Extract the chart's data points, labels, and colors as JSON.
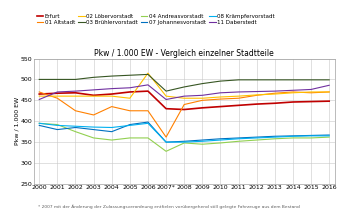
{
  "title": "Pkw / 1.000 EW - Vergleich einzelner Stadtteile",
  "ylabel": "Pkw / 1.000 EW",
  "footnote": "* 2007 mit der Änderung der Zulassungsverordnung entfielen vorübergehend still gelegte Fahrzeuge aus dem Bestand",
  "years": [
    "2000",
    "2001",
    "2002",
    "2003",
    "2004",
    "2005",
    "2006",
    "2007*",
    "2008",
    "2009",
    "2010",
    "2011",
    "2012",
    "2013",
    "2014",
    "2015",
    "2016"
  ],
  "ylim": [
    250,
    550
  ],
  "yticks": [
    250,
    300,
    350,
    400,
    450,
    500,
    550
  ],
  "series": [
    {
      "label": "Erfurt",
      "color": "#c00000",
      "linewidth": 1.2,
      "values": [
        465,
        467,
        468,
        462,
        465,
        470,
        472,
        430,
        428,
        432,
        435,
        438,
        441,
        443,
        446,
        447,
        448
      ]
    },
    {
      "label": "01 Altstadt",
      "color": "#ff8000",
      "linewidth": 0.8,
      "values": [
        470,
        455,
        425,
        415,
        435,
        425,
        425,
        362,
        440,
        450,
        453,
        455,
        462,
        467,
        470,
        468,
        470
      ]
    },
    {
      "label": "02 Löbervorstadt",
      "color": "#ffc000",
      "linewidth": 0.8,
      "values": [
        460,
        460,
        460,
        460,
        460,
        455,
        515,
        460,
        455,
        455,
        458,
        460,
        463,
        465,
        468,
        470,
        470
      ]
    },
    {
      "label": "03 Brühlervorstadt",
      "color": "#375623",
      "linewidth": 0.8,
      "values": [
        500,
        500,
        500,
        505,
        508,
        510,
        512,
        472,
        482,
        490,
        496,
        499,
        499,
        499,
        499,
        499,
        499
      ]
    },
    {
      "label": "04 Andreasvorstadt",
      "color": "#92d050",
      "linewidth": 0.8,
      "values": [
        395,
        392,
        375,
        360,
        355,
        360,
        360,
        328,
        348,
        345,
        348,
        352,
        355,
        358,
        360,
        360,
        362
      ]
    },
    {
      "label": "07 Johannesvorstadt",
      "color": "#0070c0",
      "linewidth": 0.8,
      "values": [
        390,
        380,
        385,
        380,
        375,
        392,
        398,
        350,
        352,
        355,
        358,
        360,
        362,
        364,
        365,
        366,
        367
      ]
    },
    {
      "label": "08 Krämpfervorstadt",
      "color": "#00b0f0",
      "linewidth": 0.8,
      "values": [
        395,
        390,
        388,
        386,
        385,
        390,
        395,
        350,
        350,
        352,
        355,
        358,
        360,
        362,
        364,
        365,
        365
      ]
    },
    {
      "label": "11 Daberstedt",
      "color": "#7030a0",
      "linewidth": 0.8,
      "values": [
        452,
        470,
        472,
        475,
        478,
        480,
        487,
        452,
        460,
        462,
        468,
        470,
        471,
        472,
        474,
        476,
        486
      ]
    }
  ],
  "legend_order": [
    0,
    1,
    2,
    3,
    4,
    5,
    6,
    7
  ],
  "legend_ncol": 4,
  "title_fontsize": 5.5,
  "ylabel_fontsize": 4.5,
  "tick_fontsize": 4.5,
  "legend_fontsize": 4.0
}
